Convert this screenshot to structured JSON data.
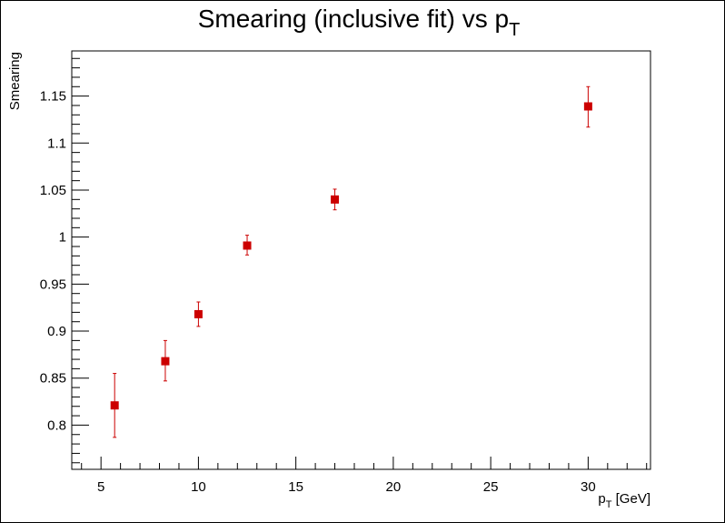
{
  "chart_data": {
    "type": "scatter",
    "title": "Smearing (inclusive fit) vs p",
    "title_subscript": "T",
    "xlabel": "p",
    "xlabel_subscript": "T",
    "xlabel_suffix": " [GeV]",
    "ylabel": "Smearing",
    "xlim": [
      3.5,
      33.2
    ],
    "ylim": [
      0.753,
      1.198
    ],
    "x_major_ticks": [
      5,
      10,
      15,
      20,
      25,
      30
    ],
    "x_tick_labels": [
      "5",
      "10",
      "15",
      "20",
      "25",
      "30"
    ],
    "x_minor_step": 1,
    "y_major_ticks": [
      0.8,
      0.85,
      0.9,
      0.95,
      1.0,
      1.05,
      1.1,
      1.15
    ],
    "y_tick_labels": [
      "0.8",
      "0.85",
      "0.9",
      "0.95",
      "1",
      "1.05",
      "1.1",
      "1.15"
    ],
    "y_minor_step": 0.01,
    "grid": false,
    "marker": "square",
    "color": "#cc0000",
    "points": [
      {
        "x": 5.7,
        "y": 0.821,
        "yerr_low": 0.787,
        "yerr_high": 0.855
      },
      {
        "x": 8.3,
        "y": 0.868,
        "yerr_low": 0.847,
        "yerr_high": 0.89
      },
      {
        "x": 10.0,
        "y": 0.918,
        "yerr_low": 0.905,
        "yerr_high": 0.931
      },
      {
        "x": 12.5,
        "y": 0.991,
        "yerr_low": 0.981,
        "yerr_high": 1.002
      },
      {
        "x": 17.0,
        "y": 1.04,
        "yerr_low": 1.029,
        "yerr_high": 1.051
      },
      {
        "x": 30.0,
        "y": 1.139,
        "yerr_low": 1.117,
        "yerr_high": 1.16
      }
    ]
  }
}
